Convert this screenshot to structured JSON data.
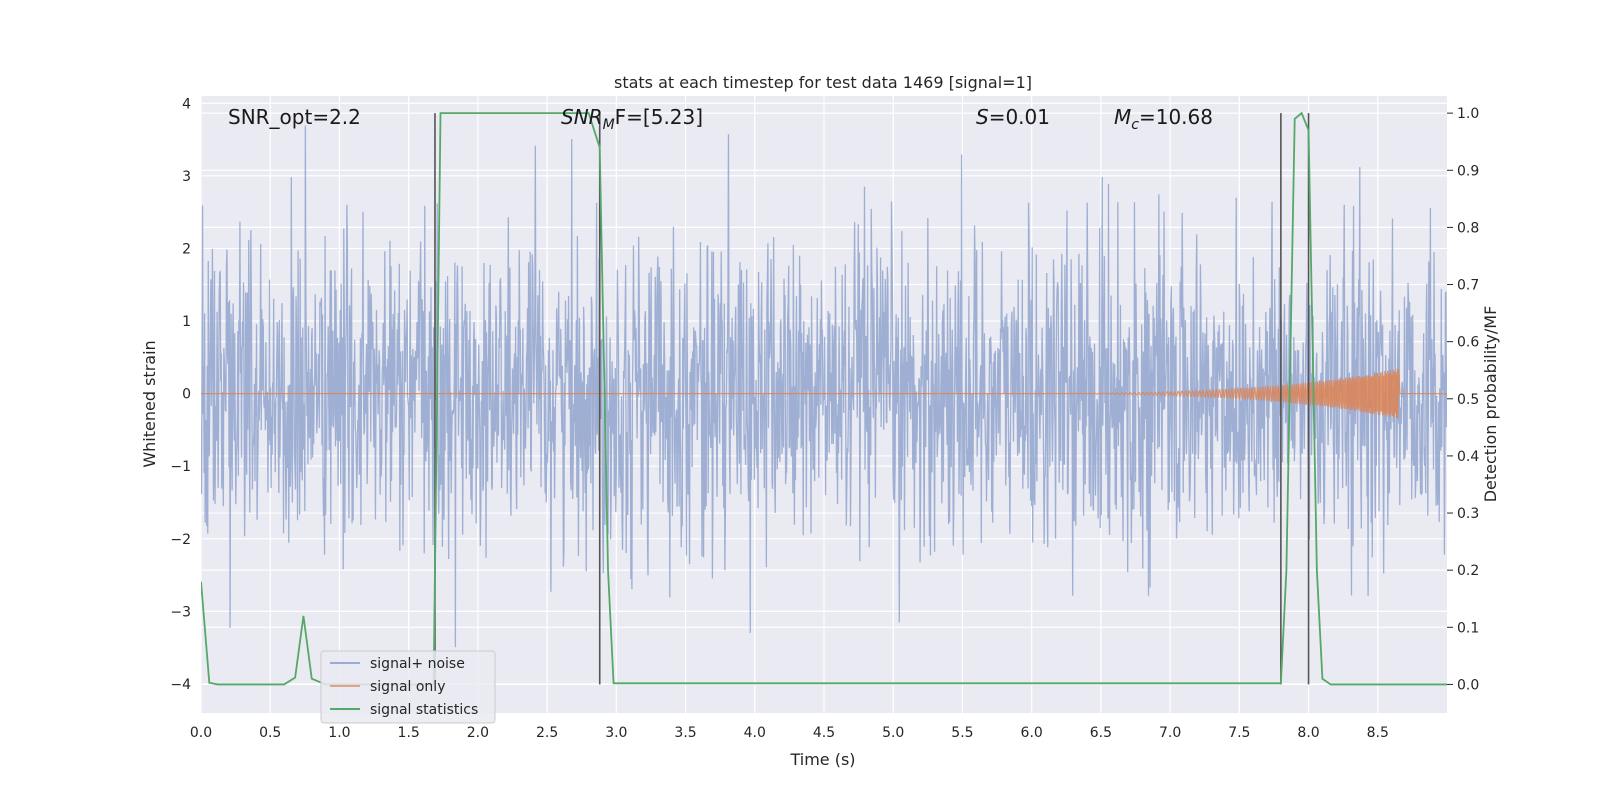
{
  "chart_data": {
    "type": "line",
    "title": "stats at each timestep for test data 1469 [signal=1]",
    "xlabel": "Time (s)",
    "ylabel_left": "Whitened strain",
    "ylabel_right": "Detection probability/MF",
    "xlim": [
      0,
      9.0
    ],
    "ylim_left": [
      -4.4,
      4.1
    ],
    "ylim_right": [
      -0.05,
      1.03
    ],
    "x_ticks": [
      "0.0",
      "0.5",
      "1.0",
      "1.5",
      "2.0",
      "2.5",
      "3.0",
      "3.5",
      "4.0",
      "4.5",
      "5.0",
      "5.5",
      "6.0",
      "6.5",
      "7.0",
      "7.5",
      "8.0",
      "8.5"
    ],
    "y_ticks_left": [
      4,
      3,
      2,
      1,
      0,
      -1,
      -2,
      -3,
      -4
    ],
    "y_ticks_left_labels": [
      "4",
      "3",
      "2",
      "1",
      "0",
      "−1",
      "−2",
      "−3",
      "−4"
    ],
    "y_ticks_right": [
      "1.0",
      "0.9",
      "0.8",
      "0.7",
      "0.6",
      "0.5",
      "0.4",
      "0.3",
      "0.2",
      "0.1",
      "0.0"
    ],
    "grid": true,
    "legend_position": "lower-left",
    "colors": {
      "noise": "#9aacd1",
      "signal": "#dd8452",
      "stats": "#55a868",
      "vline": "#555555",
      "background": "#eaeaf2",
      "grid": "#ffffff"
    },
    "series": [
      {
        "name": "signal+ noise",
        "description_amplitude": {
          "typical_range": [
            -2.0,
            2.5
          ],
          "peaks_high": [
            3.0,
            3.8
          ],
          "peaks_low": [
            -3.6,
            -4.0
          ]
        }
      },
      {
        "name": "signal only",
        "chirp": {
          "x_start": 5.5,
          "x_end": 8.65,
          "amplitude_end": 0.35
        }
      },
      {
        "name": "signal statistics",
        "x": [
          0.0,
          0.06,
          0.12,
          0.2,
          0.6,
          0.68,
          0.74,
          0.8,
          0.9,
          1.68,
          1.73,
          1.78,
          2.5,
          2.6,
          2.8,
          2.88,
          2.94,
          2.98,
          7.8,
          7.84,
          7.9,
          7.95,
          8.0,
          8.06,
          8.1,
          8.16,
          9.0
        ],
        "y": [
          0.18,
          0.003,
          0.0,
          0.0,
          0.0,
          0.012,
          0.12,
          0.01,
          0.0,
          0.0,
          1.0,
          1.0,
          1.0,
          1.0,
          1.0,
          0.94,
          0.2,
          0.002,
          0.002,
          0.2,
          0.99,
          1.0,
          0.97,
          0.2,
          0.01,
          0.0,
          0.0
        ]
      }
    ],
    "vertical_lines_x": [
      1.69,
      2.88,
      7.8,
      8.0
    ],
    "annotations": [
      {
        "id": "snr-opt",
        "text": "SNR_opt=2.2"
      },
      {
        "id": "snr-mf",
        "prefix": "SNR",
        "subscript": "M",
        "suffix": "F=[5.23]"
      },
      {
        "id": "s-value",
        "prefix": "S",
        "suffix": "=0.01"
      },
      {
        "id": "mc-value",
        "prefix": "M",
        "subscript": "c",
        "suffix": "=10.68"
      }
    ]
  }
}
